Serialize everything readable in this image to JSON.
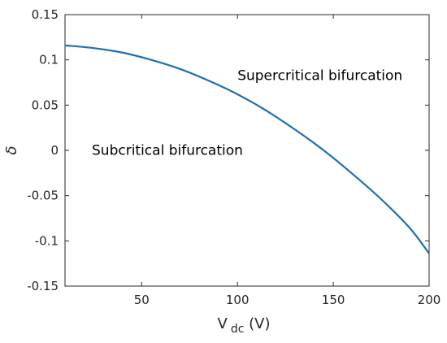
{
  "chart_data": {
    "type": "line",
    "title": "",
    "xlabel_main": "V",
    "xlabel_sub": "dc",
    "xlabel_unit": " (V)",
    "ylabel": "δ",
    "xlim": [
      10,
      200
    ],
    "ylim": [
      -0.15,
      0.15
    ],
    "xticks": [
      50,
      100,
      150,
      200
    ],
    "xtick_labels": [
      "50",
      "100",
      "150",
      "200"
    ],
    "yticks": [
      0.15,
      0.1,
      0.05,
      0,
      -0.05,
      -0.1,
      -0.15
    ],
    "ytick_labels": [
      "0.15",
      "0.1",
      "0.05",
      "0",
      "-0.05",
      "-0.1",
      "-0.15"
    ],
    "grid": false,
    "series": [
      {
        "color": "#1f6fae",
        "x": [
          10,
          25,
          40,
          55,
          70,
          85,
          100,
          115,
          130,
          145,
          160,
          175,
          190,
          200
        ],
        "y": [
          0.116,
          0.113,
          0.108,
          0.1,
          0.09,
          0.077,
          0.062,
          0.044,
          0.023,
          0.0,
          -0.026,
          -0.054,
          -0.086,
          -0.114
        ]
      }
    ],
    "annotations": [
      {
        "text": "Supercritical bifurcation",
        "x": 100,
        "y": 0.083
      },
      {
        "text": "Subcritical bifurcation",
        "x": 24,
        "y": 0.0005
      }
    ]
  }
}
